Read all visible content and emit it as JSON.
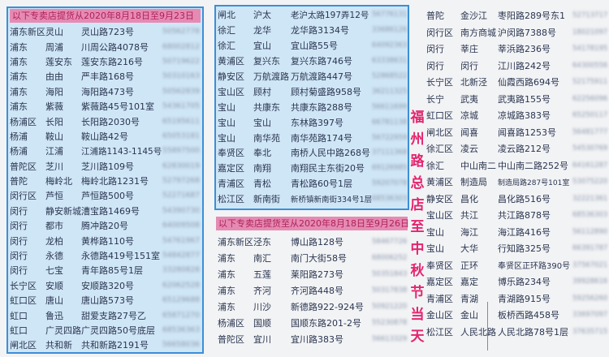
{
  "left": {
    "header": "以下专卖店提货从2020年8月18日至9月23日",
    "rows": [
      [
        "浦东新区",
        "灵山",
        "灵山路723号",
        "50562778"
      ],
      [
        "浦东",
        "周浦",
        "川周公路4078号",
        "68002812"
      ],
      [
        "浦东",
        "莲安东",
        "莲安东路216号",
        "50719622"
      ],
      [
        "浦东",
        "由由",
        "严丰路168号",
        "50310163"
      ],
      [
        "浦东",
        "海阳",
        "海阳路473号",
        "50562839"
      ],
      [
        "浦东",
        "紫薇",
        "紫薇路45号101室",
        "54361705"
      ],
      [
        "杨浦区",
        "长阳",
        "长阳路2030号",
        "65195611"
      ],
      [
        "杨浦",
        "鞍山",
        "鞍山路42号",
        "65053181"
      ],
      [
        "杨浦",
        "江浦",
        "江浦路1143-1145号",
        "55897500"
      ],
      [
        "普陀区",
        "芝川",
        "芝川路109号",
        "62830019"
      ],
      [
        "普陀",
        "梅岭北",
        "梅岭北路1231号",
        "52797268"
      ],
      [
        "闵行区",
        "芦恒",
        "芦恒路500号",
        "52271687"
      ],
      [
        "闵行",
        "静安新城",
        "漕宝路1469号",
        "54390730"
      ],
      [
        "闵行",
        "都市",
        "腾冲路20号",
        "64009508"
      ],
      [
        "闵行",
        "龙柏",
        "黄桦路110号",
        "54761967"
      ],
      [
        "闵行",
        "永德",
        "永德路419号151室",
        "54842877"
      ],
      [
        "闵行",
        "七宝",
        "青年路85号1层",
        "33280828"
      ],
      [
        "长宁区",
        "安顺",
        "安顺路320号",
        "62062528"
      ],
      [
        "虹口区",
        "唐山",
        "唐山路573号",
        "65129688"
      ],
      [
        "虹口",
        "鲁迅",
        "甜爱支路27号乙",
        "65871270"
      ],
      [
        "虹口",
        "广灵四路",
        "广灵四路50号底层",
        "68536363"
      ],
      [
        "闸北区",
        "共和新",
        "共和新路2191号",
        "56658036"
      ]
    ]
  },
  "middle": {
    "rows": [
      [
        "闸北",
        "沪太",
        "老沪太路197弄12号",
        "56776131"
      ],
      [
        "徐汇",
        "龙华",
        "龙华路3134号",
        "33686126"
      ],
      [
        "徐汇",
        "宜山",
        "宜山路55号",
        "64092363"
      ],
      [
        "黄浦区",
        "复兴东",
        "复兴东路746号",
        "63338631"
      ],
      [
        "静安区",
        "万航渡路",
        "万航渡路447号",
        "52868522"
      ],
      [
        "宝山区",
        "顾村",
        "顾村菊盛路958号",
        "36211325"
      ],
      [
        "宝山",
        "共康东",
        "共康东路288号",
        "56611699"
      ],
      [
        "宝山",
        "宝山",
        "东林路397号",
        "66781138"
      ],
      [
        "宝山",
        "南华苑",
        "南华苑路174号",
        "56722959"
      ],
      [
        "奉贤区",
        "奉北",
        "南桥人民中路268号",
        "37111368"
      ],
      [
        "嘉定区",
        "南翔",
        "南翔民主东街20号",
        "69126985"
      ],
      [
        "青浦区",
        "青松",
        "青松路60号1层",
        "59207078"
      ],
      [
        "松江区",
        "新南街",
        "新桥镇新南街334号1层",
        "68536303"
      ]
    ]
  },
  "middle2": {
    "header": "以下专卖店提货至从2020年8月18日至9月26日",
    "rows": [
      [
        "浦东新区",
        "泾东",
        "博山路128号",
        "58467726"
      ],
      [
        "浦东",
        "南汇",
        "南门大街58号",
        "68006252"
      ],
      [
        "浦东",
        "五莲",
        "莱阳路273号",
        "50351843"
      ],
      [
        "浦东",
        "齐河",
        "齐河路448号",
        "50317838"
      ],
      [
        "浦东",
        "川沙",
        "新德路922-924号",
        "50921220"
      ],
      [
        "杨浦区",
        "国顺",
        "国顺东路201-2号",
        "55230878"
      ],
      [
        "普陀区",
        "宜川",
        "宜川路383号",
        "56613329"
      ]
    ]
  },
  "vertical_note": "福州路总店至中秋节当天",
  "right": {
    "rows": [
      [
        "普陀",
        "金沙江",
        "枣阳路289号东1",
        "52713717"
      ],
      [
        "闵行区",
        "南方商城",
        "沪闵路7388号",
        "18021097"
      ],
      [
        "闵行",
        "莘庄",
        "莘浜路236号",
        "54178195"
      ],
      [
        "闵行",
        "闵行",
        "江川路242号",
        "64300556"
      ],
      [
        "长宁区",
        "北新泾",
        "仙霞西路694号",
        "52175911"
      ],
      [
        "长宁",
        "武夷",
        "武夷路155号",
        "62256096"
      ],
      [
        "虹口区",
        "凉城",
        "凉城路383号",
        "65250117"
      ],
      [
        "闸北区",
        "闻喜",
        "闻喜路1253号",
        "56481777"
      ],
      [
        "徐汇区",
        "凌云",
        "凌云路212号",
        "54530769"
      ],
      [
        "徐汇",
        "中山南二",
        "中山南二路252号",
        "64161287"
      ],
      [
        "黄浦区",
        "制造局",
        "制造局路287号101室",
        "53075220"
      ],
      [
        "静安区",
        "昌化",
        "昌化路516号",
        "32221361"
      ],
      [
        "宝山区",
        "共江",
        "共江路878号",
        "68536303"
      ],
      [
        "宝山",
        "海江",
        "海江路416号",
        "56112890"
      ],
      [
        "宝山",
        "大华",
        "行知路325号",
        "66391787"
      ],
      [
        "奉贤区",
        "正环",
        "奉贤区正环路390号",
        "37567021"
      ],
      [
        "嘉定区",
        "嘉定",
        "博乐路234号",
        "39928616"
      ],
      [
        "青浦区",
        "青湖",
        "青湖路915号",
        "59256260"
      ],
      [
        "金山区",
        "金山",
        "板桥西路458号",
        "33697097"
      ],
      [
        "松江区",
        "人民北路",
        "人民北路78号1层",
        "37635715"
      ]
    ]
  },
  "colors": {
    "accent": "#e3256f",
    "box_border": "#3b8fd8",
    "box_bg": "#cfe6f6",
    "header_bg": "#e58bb3"
  }
}
